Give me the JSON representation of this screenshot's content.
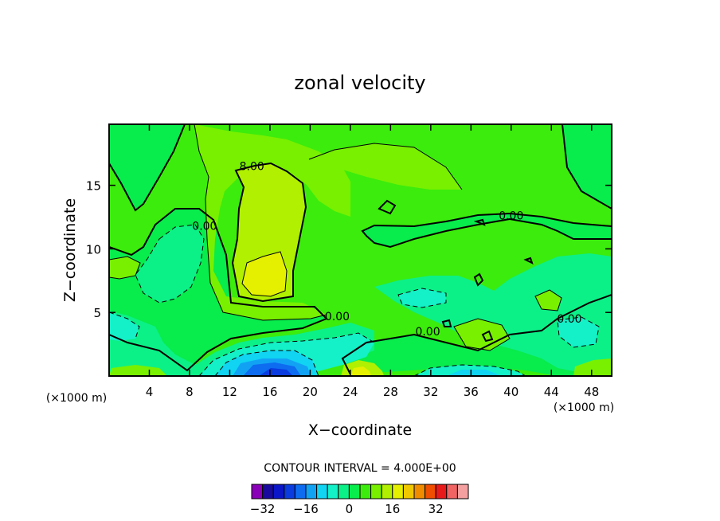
{
  "chart_data": {
    "type": "heatmap",
    "title": "zonal velocity",
    "xlabel": "X−coordinate",
    "ylabel": "Z−coordinate",
    "x_unit": "(×1000 m)",
    "x_unit_right": "(×1000 m)",
    "xlim": [
      0,
      50
    ],
    "ylim": [
      0,
      19.8
    ],
    "x_ticks": [
      4,
      8,
      12,
      16,
      20,
      24,
      28,
      32,
      36,
      40,
      44,
      48
    ],
    "y_ticks": [
      5,
      10,
      15
    ],
    "contour_interval_text": "CONTOUR INTERVAL = 4.000E+00",
    "contour_interval": 4,
    "colorbar": {
      "levels": [
        -36,
        -32,
        -28,
        -24,
        -20,
        -16,
        -12,
        -8,
        -4,
        0,
        4,
        8,
        12,
        16,
        20,
        24,
        28,
        32,
        36,
        40
      ],
      "tick_values": [
        -32,
        -16,
        0,
        16,
        32
      ],
      "tick_labels": [
        "−32",
        "−16",
        "0",
        "16",
        "32"
      ],
      "colors": [
        "#8a00b8",
        "#1a0a9e",
        "#0b16c8",
        "#0a3ce0",
        "#0d6cf0",
        "#12a2f4",
        "#10d4f2",
        "#14f0c8",
        "#0cf088",
        "#08ec4c",
        "#3cec0c",
        "#78f000",
        "#b0f000",
        "#e4f000",
        "#f0c800",
        "#f08c00",
        "#f04e00",
        "#e81a1a",
        "#f06464",
        "#f4a0a0"
      ]
    },
    "contour_labels": [
      {
        "text": "8.00",
        "x": 14.2,
        "z": 16.2
      },
      {
        "text": "0.00",
        "x": 9.5,
        "z": 11.5
      },
      {
        "text": "0.00",
        "x": 22.7,
        "z": 4.4
      },
      {
        "text": "0.00",
        "x": 31.7,
        "z": 3.2
      },
      {
        "text": "0.00",
        "x": 40.0,
        "z": 12.3
      },
      {
        "text": "0.00",
        "x": 45.8,
        "z": 4.2
      }
    ],
    "features": [
      {
        "kind": "max",
        "value_range": [
          12,
          16
        ],
        "x": 15.5,
        "z": 7.7
      },
      {
        "kind": "min",
        "value_range": [
          -24,
          -20
        ],
        "x": 17.5,
        "z": 0.5
      },
      {
        "kind": "max",
        "value_range": [
          12,
          16
        ],
        "x": 24.8,
        "z": 0.4
      }
    ]
  }
}
